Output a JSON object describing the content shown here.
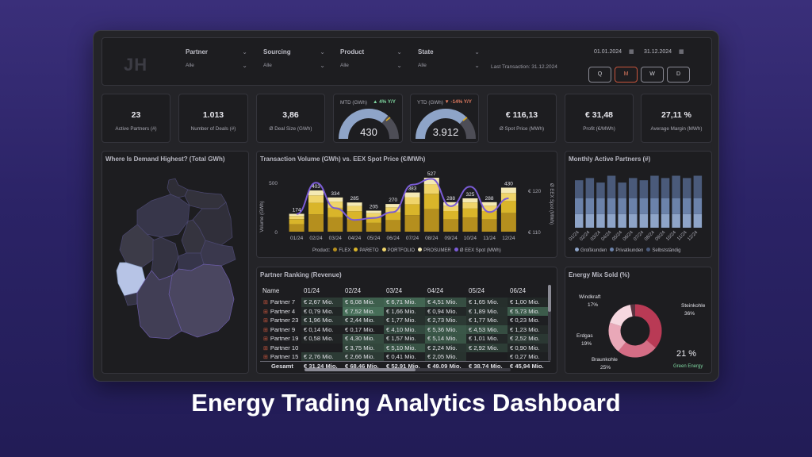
{
  "filters": {
    "logo": "JH",
    "items": [
      {
        "label": "Partner",
        "value": "Alle"
      },
      {
        "label": "Sourcing",
        "value": "Alle"
      },
      {
        "label": "Product",
        "value": "Alle"
      },
      {
        "label": "State",
        "value": "Alle"
      }
    ],
    "last_transaction": "Last Transaction: 31.12.2024",
    "date_from": "01.01.2024",
    "date_to": "31.12.2024",
    "granularity": [
      "Q",
      "M",
      "W",
      "D"
    ],
    "active_granularity": "M"
  },
  "kpis": [
    {
      "value": "23",
      "label": "Active Partners (#)"
    },
    {
      "value": "1.013",
      "label": "Number of Deals (#)"
    },
    {
      "value": "3,86",
      "label": "Ø Deal Size (GWh)"
    },
    {
      "value": "€ 116,13",
      "label": "Ø Spot Price (MWh)"
    },
    {
      "value": "€ 31,48",
      "label": "Profit (€/MWh)"
    },
    {
      "value": "27,11 %",
      "label": "Average Margin (MWh)"
    }
  ],
  "gauges": [
    {
      "title": "MTD (GWh)",
      "delta": "▲ 4% Y/Y",
      "delta_color": "#7fd6a0",
      "value": "430",
      "fraction": 0.72
    },
    {
      "title": "YTD (GWh)",
      "delta": "▼ -14% Y/Y",
      "delta_color": "#e07a5f",
      "value": "3.912",
      "fraction": 0.74
    }
  ],
  "map": {
    "title": "Where Is Demand Highest? (Total GWh)"
  },
  "transaction_chart": {
    "title": "Transaction Volume (GWh) vs. EEX Spot Price (€/MWh)",
    "y_left_label": "Volume (GWh)",
    "y_right_label": "Ø EEX Spot (MWh)",
    "y_left_ticks": [
      "500",
      "0"
    ],
    "y_right_ticks": [
      "€ 120",
      "€ 110"
    ],
    "legend_title": "Product:",
    "legend": [
      {
        "name": "FLEX",
        "color": "#b58f1e"
      },
      {
        "name": "PARETO",
        "color": "#d9b52a"
      },
      {
        "name": "PORTFOLIO",
        "color": "#efd46a"
      },
      {
        "name": "PROSUMER",
        "color": "#f4e9b4"
      },
      {
        "name": "Ø EEX Spot (MWh)",
        "color": "#7b5cd6"
      }
    ]
  },
  "chart_data": [
    {
      "type": "bar",
      "title": "Transaction Volume (GWh) vs. EEX Spot Price (€/MWh)",
      "categories": [
        "01/24",
        "02/24",
        "03/24",
        "04/24",
        "05/24",
        "06/24",
        "07/24",
        "08/24",
        "09/24",
        "10/24",
        "11/24",
        "12/24"
      ],
      "values": [
        174,
        403,
        334,
        285,
        205,
        270,
        383,
        527,
        288,
        325,
        288,
        430
      ],
      "ylabel": "Volume (GWh)",
      "ylim": [
        0,
        550
      ],
      "line_series": {
        "name": "Ø EEX Spot (MWh)",
        "values": [
          112.5,
          120.5,
          114,
          111,
          111.5,
          113,
          120,
          121.5,
          114.5,
          119.5,
          113,
          116.5
        ],
        "ylim": [
          108,
          124
        ]
      }
    },
    {
      "type": "bar",
      "title": "Monthly Active Partners (#)",
      "categories": [
        "01/24",
        "02/24",
        "03/24",
        "04/24",
        "05/24",
        "06/24",
        "07/24",
        "08/24",
        "09/24",
        "10/24",
        "11/24",
        "12/24"
      ],
      "series": [
        {
          "name": "Großkunden",
          "values": [
            6,
            6,
            6,
            6,
            6,
            6,
            6,
            6,
            6,
            6,
            6,
            6
          ]
        },
        {
          "name": "Privatkunden",
          "values": [
            7,
            7,
            7,
            7,
            7,
            7,
            7,
            7,
            7,
            7,
            7,
            7
          ]
        },
        {
          "name": "Selbstständig",
          "values": [
            8,
            9,
            7,
            10,
            7,
            9,
            8,
            10,
            9,
            10,
            9,
            10
          ]
        }
      ]
    },
    {
      "type": "pie",
      "title": "Energy Mix Sold (%)",
      "categories": [
        "Steinkohle",
        "Braunkohle",
        "Erdgas",
        "Windkraft"
      ],
      "values": [
        36,
        25,
        19,
        17
      ],
      "colors": [
        "#b93a55",
        "#d46d85",
        "#e9a8b8",
        "#f6d8e0"
      ]
    }
  ],
  "monthly": {
    "title": "Monthly Active Partners (#)",
    "legend": [
      {
        "name": "Großkunden",
        "color": "#8ea4c8"
      },
      {
        "name": "Privatkunden",
        "color": "#6b82aa"
      },
      {
        "name": "Selbstständig",
        "color": "#4a5a7a"
      }
    ]
  },
  "ranking": {
    "title": "Partner Ranking (Revenue)",
    "headers": [
      "Name",
      "01/24",
      "02/24",
      "03/24",
      "04/24",
      "05/24",
      "06/24"
    ],
    "rows": [
      {
        "name": "Partner 7",
        "cells": [
          "€ 2,67 Mio.",
          "€ 6,08 Mio.",
          "€ 6,71 Mio.",
          "€ 4,51 Mio.",
          "€ 1,65 Mio.",
          "€ 1,00 Mio."
        ]
      },
      {
        "name": "Partner 4",
        "cells": [
          "€ 0,79 Mio.",
          "€ 7,52 Mio.",
          "€ 1,66 Mio.",
          "€ 0,94 Mio.",
          "€ 1,89 Mio.",
          "€ 5,73 Mio."
        ]
      },
      {
        "name": "Partner 23",
        "cells": [
          "€ 1,96 Mio.",
          "€ 2,44 Mio.",
          "€ 1,77 Mio.",
          "€ 2,73 Mio.",
          "€ 1,77 Mio.",
          "€ 0,23 Mio."
        ]
      },
      {
        "name": "Partner 9",
        "cells": [
          "€ 0,14 Mio.",
          "€ 0,17 Mio.",
          "€ 4,10 Mio.",
          "€ 5,36 Mio.",
          "€ 4,53 Mio.",
          "€ 1,23 Mio."
        ]
      },
      {
        "name": "Partner 19",
        "cells": [
          "€ 0,58 Mio.",
          "€ 4,30 Mio.",
          "€ 1,57 Mio.",
          "€ 5,14 Mio.",
          "€ 1,01 Mio.",
          "€ 2,52 Mio."
        ]
      },
      {
        "name": "Partner 10",
        "cells": [
          "",
          "€ 3,75 Mio.",
          "€ 5,10 Mio.",
          "€ 2,24 Mio.",
          "€ 2,92 Mio.",
          "€ 0,90 Mio."
        ]
      },
      {
        "name": "Partner 15",
        "cells": [
          "€ 2,76 Mio.",
          "€ 2,66 Mio.",
          "€ 0,41 Mio.",
          "€ 2,05 Mio.",
          "",
          "€ 0,27 Mio."
        ]
      }
    ],
    "total": {
      "name": "Gesamt",
      "cells": [
        "€ 31,24 Mio.",
        "€ 68,46 Mio.",
        "€ 52,91 Mio.",
        "€ 49,09 Mio.",
        "€ 38,74 Mio.",
        "€ 45,94 Mio."
      ]
    }
  },
  "mix": {
    "title": "Energy Mix Sold (%)",
    "labels": [
      {
        "name": "Steinkohle",
        "pct": "36%"
      },
      {
        "name": "Braunkohle",
        "pct": "25%"
      },
      {
        "name": "Erdgas",
        "pct": "19%"
      },
      {
        "name": "Windkraft",
        "pct": "17%"
      }
    ],
    "green_value": "21 %",
    "green_label": "Green Energy"
  },
  "caption": "Energy Trading Analytics Dashboard"
}
